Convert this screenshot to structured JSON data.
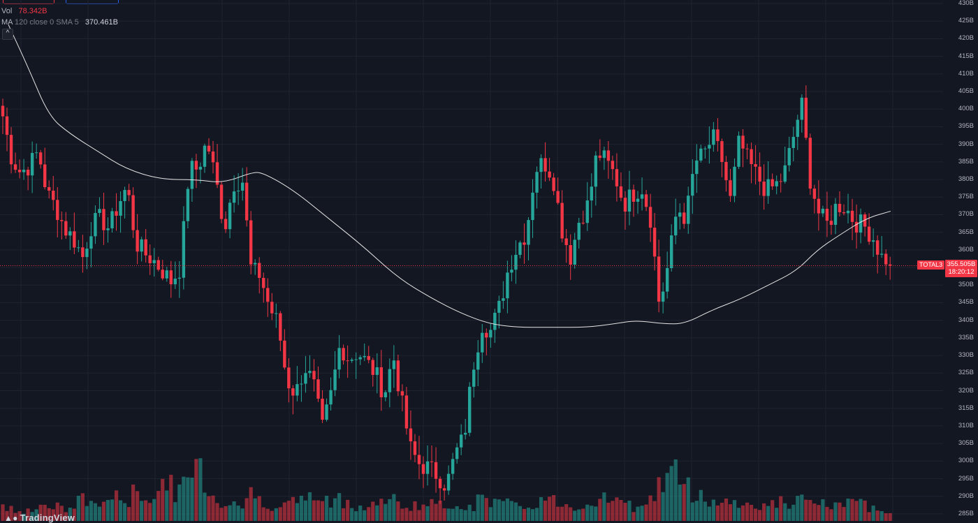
{
  "legend": {
    "vol_label": "Vol",
    "vol_value": "78.342B",
    "ma_label": "MA",
    "ma_params": "120 close 0 SMA 5",
    "ma_value": "370.461B",
    "collapse_glyph": "^"
  },
  "price_tag": {
    "symbol": "TOTAL3",
    "price": "355.505B",
    "countdown": "18:20:12"
  },
  "brand": {
    "name": "TradingView",
    "logo_icon": "tradingview-logo-icon"
  },
  "colors": {
    "background": "#131722",
    "grid": "#1f2330",
    "up": "#26a69a",
    "down": "#f23645",
    "ma_line": "#e6e6e6",
    "price_line": "#f23645"
  },
  "chart_data": {
    "type": "candlestick",
    "symbol": "TOTAL3",
    "ylim": [
      283,
      431
    ],
    "y_ticks": [
      "430B",
      "425B",
      "420B",
      "415B",
      "410B",
      "405B",
      "400B",
      "395B",
      "390B",
      "385B",
      "380B",
      "375B",
      "370B",
      "365B",
      "360B",
      "355B",
      "350B",
      "345B",
      "340B",
      "335B",
      "330B",
      "325B",
      "320B",
      "315B",
      "310B",
      "305B",
      "300B",
      "295B",
      "290B",
      "285B"
    ],
    "y_tick_values": [
      430,
      425,
      420,
      415,
      410,
      405,
      400,
      395,
      390,
      385,
      380,
      375,
      370,
      365,
      360,
      355,
      350,
      345,
      340,
      335,
      330,
      325,
      320,
      315,
      310,
      305,
      300,
      295,
      290,
      285
    ],
    "last_price": 355.505,
    "ma": {
      "period": 120,
      "source": "close",
      "type": "SMA"
    },
    "close_anchors": [
      398,
      386,
      382,
      384,
      388,
      376,
      372,
      366,
      363,
      358,
      367,
      369,
      366,
      373,
      378,
      362,
      359,
      357,
      354,
      351,
      355,
      383,
      383,
      391,
      380,
      366,
      379,
      380,
      354,
      353,
      344,
      339,
      323,
      319,
      327,
      322,
      309,
      319,
      333,
      329,
      331,
      328,
      325,
      319,
      330,
      316,
      303,
      299,
      298,
      296,
      293,
      302,
      307,
      327,
      339,
      337,
      344,
      355,
      361,
      365,
      383,
      385,
      381,
      366,
      358,
      369,
      373,
      388,
      385,
      381,
      373,
      376,
      378,
      369,
      344,
      356,
      372,
      369,
      385,
      387,
      392,
      386,
      374,
      391,
      385,
      381,
      377,
      378,
      381,
      391,
      402,
      380,
      370,
      367,
      373,
      372,
      368,
      367,
      364,
      358,
      357
    ],
    "volume_anchors": [
      22,
      16,
      15,
      19,
      18,
      24,
      20,
      16,
      19,
      34,
      26,
      22,
      35,
      32,
      28,
      42,
      38,
      30,
      55,
      48,
      40,
      60,
      88,
      48,
      30,
      24,
      28,
      22,
      38,
      30,
      26,
      20,
      22,
      30,
      32,
      34,
      28,
      24,
      32,
      26,
      22,
      18,
      26,
      28,
      30,
      20,
      24,
      20,
      26,
      22,
      18,
      26,
      24,
      20,
      34,
      30,
      26,
      24,
      18,
      22,
      26,
      28,
      30,
      24,
      22,
      20,
      26,
      32,
      38,
      28,
      24,
      20,
      26,
      30,
      52,
      60,
      72,
      48,
      40,
      34,
      28,
      26,
      30,
      24,
      22,
      26,
      20,
      24,
      28,
      22,
      30,
      26,
      24,
      22,
      20,
      26,
      24,
      22,
      20,
      18,
      18
    ],
    "ma_anchors": [
      [
        12,
        424
      ],
      [
        40,
        412
      ],
      [
        70,
        398
      ],
      [
        100,
        393
      ],
      [
        140,
        388
      ],
      [
        180,
        383
      ],
      [
        230,
        380
      ],
      [
        280,
        380
      ],
      [
        320,
        379
      ],
      [
        360,
        382
      ],
      [
        376,
        382
      ],
      [
        420,
        377
      ],
      [
        470,
        369
      ],
      [
        520,
        361
      ],
      [
        570,
        352
      ],
      [
        620,
        346
      ],
      [
        660,
        342
      ],
      [
        700,
        339
      ],
      [
        740,
        338
      ],
      [
        790,
        338
      ],
      [
        840,
        338
      ],
      [
        880,
        339
      ],
      [
        910,
        340
      ],
      [
        950,
        339
      ],
      [
        980,
        339
      ],
      [
        1020,
        343
      ],
      [
        1060,
        346
      ],
      [
        1100,
        350
      ],
      [
        1140,
        354
      ],
      [
        1170,
        360
      ],
      [
        1200,
        364
      ],
      [
        1240,
        369
      ],
      [
        1275,
        371
      ]
    ],
    "price_tick_labels_shown_on_right_axis": true
  }
}
